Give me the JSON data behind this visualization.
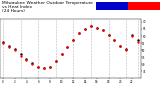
{
  "title": "Milwaukee Weather Outdoor Temperature\nvs Heat Index\n(24 Hours)",
  "title_fontsize": 3.2,
  "title_color": "#000000",
  "background_color": "#ffffff",
  "plot_bg_color": "#ffffff",
  "hours": [
    0,
    1,
    2,
    3,
    4,
    5,
    6,
    7,
    8,
    9,
    10,
    11,
    12,
    13,
    14,
    15,
    16,
    17,
    18,
    19,
    20,
    21,
    22,
    23
  ],
  "temp": [
    55,
    52,
    50,
    46,
    43,
    40,
    38,
    37,
    38,
    42,
    47,
    52,
    57,
    62,
    65,
    67,
    66,
    64,
    61,
    57,
    53,
    50,
    60,
    56
  ],
  "heat_idx": [
    56,
    53,
    51,
    47,
    44,
    41,
    38,
    37,
    38,
    42,
    47,
    52,
    57,
    62,
    65,
    67,
    66,
    64,
    61,
    57,
    53,
    51,
    61,
    57
  ],
  "temp_color": "#ff0000",
  "heat_index_color": "#000000",
  "ylim": [
    30,
    72
  ],
  "ytick_values": [
    35,
    40,
    45,
    50,
    55,
    60,
    65,
    70
  ],
  "ytick_labels": [
    "35",
    "40",
    "45",
    "50",
    "55",
    "60",
    "65",
    "70"
  ],
  "grid_color": "#999999",
  "grid_positions": [
    0,
    3,
    6,
    9,
    12,
    15,
    18,
    21,
    23
  ],
  "marker_size": 1.5,
  "colorbar_blue": "#0000cc",
  "colorbar_red": "#ff0000"
}
